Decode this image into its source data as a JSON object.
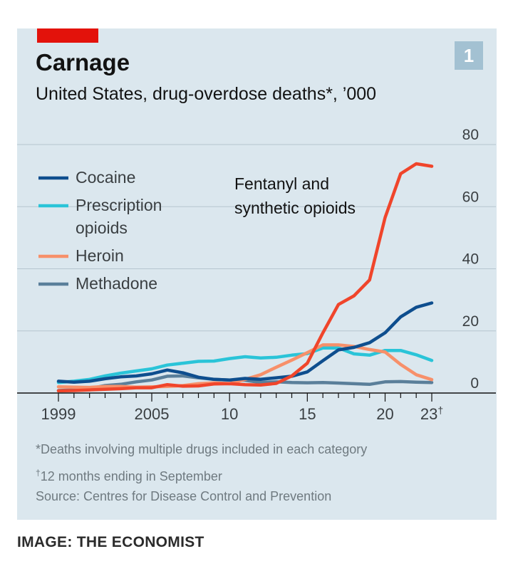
{
  "chart_number": "1",
  "credit": "IMAGE: THE ECONOMIST",
  "footnotes": {
    "note1": "*Deaths involving multiple drugs included in each category",
    "note2_marker": "†",
    "note2": "12 months ending in September",
    "source": "Source: Centres for Disease Control and Prevention"
  },
  "chart_data": {
    "type": "line",
    "title": "Carnage",
    "subtitle": "United States, drug-overdose deaths*, ’000",
    "ylim": [
      0,
      80
    ],
    "y_ticks": [
      "0",
      "20",
      "40",
      "60",
      "80"
    ],
    "y_tick_values": [
      0,
      20,
      40,
      60,
      80
    ],
    "xlim": [
      1999,
      2023
    ],
    "x_tick_labels": [
      "1999",
      "2005",
      "10",
      "15",
      "20",
      "23"
    ],
    "x_tick_values": [
      1999,
      2005,
      2010,
      2015,
      2020,
      2023
    ],
    "x_tick_dagger": "†",
    "grid": true,
    "legend_position": "top-left",
    "x": [
      1999,
      2000,
      2001,
      2002,
      2003,
      2004,
      2005,
      2006,
      2007,
      2008,
      2009,
      2010,
      2011,
      2012,
      2013,
      2014,
      2015,
      2016,
      2017,
      2018,
      2019,
      2020,
      2021,
      2022,
      2023
    ],
    "series": [
      {
        "name": "Cocaine",
        "color": "#0e4e8e",
        "values": [
          3.8,
          3.5,
          3.8,
          4.6,
          5.2,
          5.5,
          6.2,
          7.4,
          6.5,
          5.1,
          4.4,
          4.2,
          4.7,
          4.4,
          4.9,
          5.4,
          6.8,
          10.4,
          13.9,
          14.7,
          16.2,
          19.4,
          24.5,
          27.6,
          29.0
        ]
      },
      {
        "name": "Prescription opioids",
        "color": "#2ac4d8",
        "values": [
          3.4,
          3.8,
          4.4,
          5.5,
          6.4,
          7.1,
          7.8,
          9.0,
          9.6,
          10.2,
          10.3,
          11.1,
          11.7,
          11.3,
          11.5,
          12.2,
          12.7,
          14.5,
          14.5,
          12.6,
          12.2,
          13.7,
          13.7,
          12.3,
          10.5
        ]
      },
      {
        "name": "Heroin",
        "color": "#f7906a",
        "values": [
          2.0,
          1.9,
          1.8,
          2.1,
          2.1,
          1.9,
          2.0,
          2.1,
          2.4,
          3.0,
          3.3,
          3.0,
          4.4,
          5.9,
          8.3,
          10.6,
          13.0,
          15.5,
          15.5,
          15.0,
          14.0,
          13.2,
          9.2,
          5.9,
          4.3
        ]
      },
      {
        "name": "Methadone",
        "color": "#5a7f9a",
        "values": [
          0.8,
          1.0,
          1.4,
          2.4,
          2.8,
          3.6,
          4.2,
          5.4,
          5.5,
          4.9,
          4.4,
          4.2,
          4.1,
          3.4,
          3.6,
          3.4,
          3.3,
          3.4,
          3.2,
          3.0,
          2.8,
          3.6,
          3.7,
          3.5,
          3.4
        ]
      },
      {
        "name": "Fentanyl and synthetic opioids",
        "color": "#f0452b",
        "values": [
          0.7,
          0.8,
          1.0,
          1.2,
          1.4,
          1.7,
          1.7,
          2.7,
          2.2,
          2.3,
          2.9,
          3.0,
          2.7,
          2.6,
          3.1,
          5.5,
          9.6,
          19.4,
          28.5,
          31.3,
          36.4,
          56.5,
          70.6,
          73.8,
          73.0
        ]
      }
    ],
    "legend": [
      {
        "label_lines": [
          "Cocaine"
        ],
        "color": "#0e4e8e"
      },
      {
        "label_lines": [
          "Prescription",
          "opioids"
        ],
        "color": "#2ac4d8"
      },
      {
        "label_lines": [
          "Heroin"
        ],
        "color": "#f7906a"
      },
      {
        "label_lines": [
          "Methadone"
        ],
        "color": "#5a7f9a"
      }
    ],
    "annotation": {
      "lines": [
        "Fentanyl and",
        "synthetic opioids"
      ]
    }
  }
}
